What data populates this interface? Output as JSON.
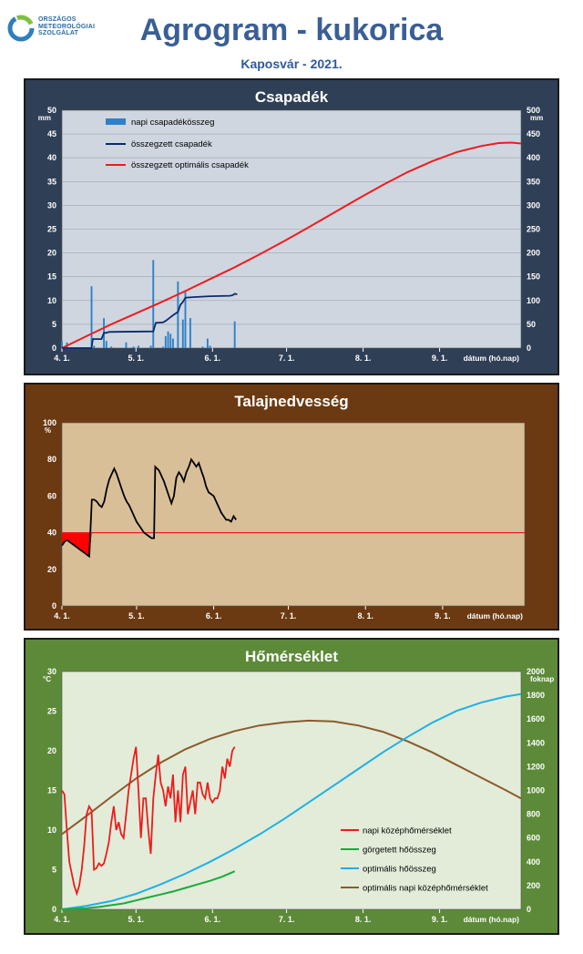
{
  "header": {
    "logo_text": "ORSZÁGOS\nMETEOROLÓGIAI\nSZOLGÁLAT",
    "title": "Agrogram - kukorica",
    "subtitle": "Kaposvár - 2021."
  },
  "colors": {
    "title": "#3a5f95",
    "precip_bg": "#2f3f55",
    "precip_plot": "#cfd6e0",
    "soil_bg": "#6b3a12",
    "soil_plot": "#d9bf98",
    "temp_bg": "#5d8a38",
    "temp_plot": "#e2ecd9"
  },
  "chart_data": [
    {
      "id": "precip",
      "type": "bar+line",
      "title": "Csapadék",
      "x_axis": {
        "label": "dátum (hó.nap)",
        "range_days": [
          0,
          186
        ],
        "ticks": [
          {
            "d": 0,
            "label": "4. 1."
          },
          {
            "d": 30,
            "label": "5. 1."
          },
          {
            "d": 61,
            "label": "6. 1."
          },
          {
            "d": 91,
            "label": "7. 1."
          },
          {
            "d": 122,
            "label": "8. 1."
          },
          {
            "d": 153,
            "label": "9. 1."
          }
        ]
      },
      "y_left": {
        "unit": "mm",
        "range": [
          0,
          50
        ],
        "ticks": [
          0,
          5,
          10,
          15,
          20,
          25,
          30,
          35,
          40,
          45,
          50
        ]
      },
      "y_right": {
        "unit": "mm",
        "range": [
          0,
          500
        ],
        "ticks": [
          0,
          50,
          100,
          150,
          200,
          250,
          300,
          350,
          400,
          450,
          500
        ]
      },
      "grid": true,
      "legend": {
        "position": "top-left",
        "entries": [
          "napi csapadékösszeg",
          "összegzett csapadék",
          "összegzett optimális csapadék"
        ]
      },
      "daily_precip": [
        [
          0,
          1.5
        ],
        [
          2,
          1.2
        ],
        [
          12,
          13
        ],
        [
          13,
          0.5
        ],
        [
          17,
          6.3
        ],
        [
          18,
          1.5
        ],
        [
          20,
          0.3
        ],
        [
          26,
          1.2
        ],
        [
          29,
          0.3
        ],
        [
          31,
          0.5
        ],
        [
          36,
          0.5
        ],
        [
          37,
          18.5
        ],
        [
          41,
          0.3
        ],
        [
          42,
          2.5
        ],
        [
          43,
          3.5
        ],
        [
          44,
          3
        ],
        [
          45,
          2
        ],
        [
          47,
          14
        ],
        [
          49,
          6
        ],
        [
          50,
          11.8
        ],
        [
          52,
          6.3
        ],
        [
          57,
          0.3
        ],
        [
          59,
          2
        ],
        [
          60,
          0.5
        ],
        [
          70,
          5.6
        ]
      ],
      "cumulative": [
        [
          0,
          0
        ],
        [
          12,
          0
        ],
        [
          12.5,
          1.9
        ],
        [
          16,
          1.9
        ],
        [
          17,
          3.2
        ],
        [
          18,
          3.2
        ],
        [
          19,
          3.4
        ],
        [
          37,
          3.5
        ],
        [
          38,
          5.3
        ],
        [
          41,
          5.4
        ],
        [
          42,
          5.7
        ],
        [
          43,
          6.1
        ],
        [
          44,
          6.5
        ],
        [
          45,
          6.9
        ],
        [
          47,
          7.6
        ],
        [
          48,
          9.1
        ],
        [
          49,
          9.7
        ],
        [
          50,
          10.6
        ],
        [
          53,
          10.7
        ],
        [
          60,
          10.9
        ],
        [
          68,
          11
        ],
        [
          69,
          11.1
        ],
        [
          70,
          11.4
        ],
        [
          71,
          11.3
        ]
      ],
      "optimal_cumulative": [
        [
          0,
          0
        ],
        [
          10,
          25
        ],
        [
          20,
          50
        ],
        [
          30,
          73
        ],
        [
          40,
          96
        ],
        [
          50,
          120
        ],
        [
          60,
          145
        ],
        [
          70,
          170
        ],
        [
          80,
          197
        ],
        [
          90,
          225
        ],
        [
          100,
          254
        ],
        [
          110,
          284
        ],
        [
          120,
          314
        ],
        [
          130,
          343
        ],
        [
          140,
          370
        ],
        [
          150,
          393
        ],
        [
          160,
          412
        ],
        [
          170,
          425
        ],
        [
          177,
          431
        ],
        [
          182,
          432
        ],
        [
          186,
          430
        ]
      ]
    },
    {
      "id": "soil",
      "type": "line",
      "title": "Talajnedvesség",
      "x_axis": {
        "label": "dátum (hó.nap)",
        "range_days": [
          0,
          186
        ],
        "ticks": [
          {
            "d": 0,
            "label": "4. 1."
          },
          {
            "d": 30,
            "label": "5. 1."
          },
          {
            "d": 61,
            "label": "6. 1."
          },
          {
            "d": 91,
            "label": "7. 1."
          },
          {
            "d": 122,
            "label": "8. 1."
          },
          {
            "d": 153,
            "label": "9. 1."
          }
        ]
      },
      "y_axis": {
        "unit": "%",
        "range": [
          0,
          100
        ],
        "ticks": [
          0,
          20,
          40,
          60,
          80,
          100
        ]
      },
      "grid": false,
      "threshold": 40,
      "soil_moisture": [
        [
          0,
          33
        ],
        [
          1,
          35
        ],
        [
          2,
          36
        ],
        [
          3,
          35
        ],
        [
          4,
          34
        ],
        [
          5,
          33
        ],
        [
          6,
          32
        ],
        [
          7,
          31
        ],
        [
          8,
          30
        ],
        [
          9,
          29
        ],
        [
          10,
          28
        ],
        [
          11,
          27
        ],
        [
          12,
          58
        ],
        [
          13,
          58
        ],
        [
          14,
          57
        ],
        [
          15,
          55
        ],
        [
          16,
          54
        ],
        [
          17,
          57
        ],
        [
          18,
          64
        ],
        [
          19,
          69
        ],
        [
          20,
          72
        ],
        [
          21,
          75
        ],
        [
          22,
          72
        ],
        [
          23,
          68
        ],
        [
          24,
          64
        ],
        [
          25,
          60
        ],
        [
          26,
          57
        ],
        [
          27,
          55
        ],
        [
          28,
          52
        ],
        [
          29,
          49
        ],
        [
          30,
          46
        ],
        [
          31,
          44
        ],
        [
          32,
          42
        ],
        [
          33,
          40
        ],
        [
          34,
          39
        ],
        [
          35,
          38
        ],
        [
          36,
          37
        ],
        [
          37,
          37
        ],
        [
          37.5,
          76
        ],
        [
          39,
          74
        ],
        [
          41,
          68
        ],
        [
          43,
          60
        ],
        [
          44,
          56
        ],
        [
          45,
          60
        ],
        [
          46,
          70
        ],
        [
          47,
          73
        ],
        [
          48,
          71
        ],
        [
          49,
          68
        ],
        [
          50,
          73
        ],
        [
          51,
          76
        ],
        [
          52,
          80
        ],
        [
          53,
          78
        ],
        [
          54,
          76
        ],
        [
          55,
          78
        ],
        [
          56,
          74
        ],
        [
          57,
          70
        ],
        [
          58,
          65
        ],
        [
          59,
          62
        ],
        [
          60,
          61
        ],
        [
          61,
          60
        ],
        [
          62,
          57
        ],
        [
          63,
          54
        ],
        [
          64,
          51
        ],
        [
          65,
          49
        ],
        [
          66,
          47
        ],
        [
          67,
          47
        ],
        [
          68,
          46
        ],
        [
          69,
          49
        ],
        [
          70,
          47
        ]
      ]
    },
    {
      "id": "temp",
      "type": "line",
      "title": "Hőmérséklet",
      "x_axis": {
        "label": "dátum (hó.nap)",
        "range_days": [
          0,
          186
        ],
        "ticks": [
          {
            "d": 0,
            "label": "4. 1."
          },
          {
            "d": 30,
            "label": "5. 1."
          },
          {
            "d": 61,
            "label": "6. 1."
          },
          {
            "d": 91,
            "label": "7. 1."
          },
          {
            "d": 122,
            "label": "8. 1."
          },
          {
            "d": 153,
            "label": "9. 1."
          }
        ]
      },
      "y_left": {
        "unit": "°C",
        "range": [
          0,
          30
        ],
        "ticks": [
          0,
          5,
          10,
          15,
          20,
          25,
          30
        ]
      },
      "y_right": {
        "unit": "foknap",
        "range": [
          0,
          2000
        ],
        "ticks": [
          0,
          200,
          400,
          600,
          800,
          1000,
          1200,
          1400,
          1600,
          1800,
          2000
        ]
      },
      "grid": false,
      "legend": {
        "position": "bottom-right",
        "entries": [
          "napi középhőmérséklet",
          "görgetett hőösszeg",
          "optimális hőösszeg",
          "optimális napi középhőmérséklet"
        ]
      },
      "daily_mean_temp": [
        [
          0,
          15
        ],
        [
          1,
          14.5
        ],
        [
          2,
          10
        ],
        [
          3,
          6
        ],
        [
          4,
          4.5
        ],
        [
          5,
          3
        ],
        [
          6,
          2
        ],
        [
          7,
          3
        ],
        [
          8,
          5
        ],
        [
          9,
          8
        ],
        [
          10,
          12
        ],
        [
          11,
          13
        ],
        [
          12,
          12.5
        ],
        [
          13,
          5
        ],
        [
          14,
          5.2
        ],
        [
          15,
          5.8
        ],
        [
          16,
          5.5
        ],
        [
          17,
          5.8
        ],
        [
          18,
          7
        ],
        [
          19,
          8.5
        ],
        [
          20,
          11
        ],
        [
          21,
          13
        ],
        [
          22,
          10
        ],
        [
          23,
          11
        ],
        [
          24,
          9.5
        ],
        [
          25,
          9
        ],
        [
          26,
          12
        ],
        [
          27,
          15
        ],
        [
          28,
          17
        ],
        [
          29,
          19
        ],
        [
          30,
          20.5
        ],
        [
          31,
          15
        ],
        [
          32,
          9
        ],
        [
          33,
          14
        ],
        [
          34,
          14
        ],
        [
          35,
          10
        ],
        [
          36,
          7
        ],
        [
          37,
          14
        ],
        [
          38,
          17
        ],
        [
          39,
          19.5
        ],
        [
          40,
          16
        ],
        [
          41,
          15
        ],
        [
          42,
          13
        ],
        [
          43,
          15.5
        ],
        [
          44,
          14
        ],
        [
          45,
          17
        ],
        [
          46,
          11
        ],
        [
          47,
          15
        ],
        [
          48,
          11
        ],
        [
          49,
          17
        ],
        [
          50,
          18
        ],
        [
          51,
          12
        ],
        [
          52,
          13.5
        ],
        [
          53,
          15
        ],
        [
          54,
          12
        ],
        [
          55,
          16
        ],
        [
          56,
          16
        ],
        [
          57,
          14.5
        ],
        [
          58,
          14
        ],
        [
          59,
          16
        ],
        [
          60,
          14
        ],
        [
          61,
          13.5
        ],
        [
          62,
          14
        ],
        [
          63,
          14
        ],
        [
          64,
          15
        ],
        [
          65,
          18
        ],
        [
          66,
          16.5
        ],
        [
          67,
          19
        ],
        [
          68,
          18
        ],
        [
          69,
          20
        ],
        [
          70,
          20.5
        ]
      ],
      "rolling_heat_sum": [
        [
          0,
          0
        ],
        [
          10,
          10
        ],
        [
          15,
          20
        ],
        [
          20,
          35
        ],
        [
          25,
          50
        ],
        [
          30,
          75
        ],
        [
          35,
          100
        ],
        [
          40,
          125
        ],
        [
          45,
          150
        ],
        [
          50,
          180
        ],
        [
          55,
          210
        ],
        [
          60,
          240
        ],
        [
          65,
          275
        ],
        [
          70,
          320
        ]
      ],
      "optimal_heat_sum": [
        [
          0,
          0
        ],
        [
          10,
          30
        ],
        [
          20,
          70
        ],
        [
          30,
          130
        ],
        [
          40,
          210
        ],
        [
          50,
          300
        ],
        [
          60,
          400
        ],
        [
          70,
          510
        ],
        [
          80,
          630
        ],
        [
          90,
          760
        ],
        [
          100,
          900
        ],
        [
          110,
          1040
        ],
        [
          120,
          1180
        ],
        [
          130,
          1320
        ],
        [
          140,
          1450
        ],
        [
          150,
          1570
        ],
        [
          160,
          1670
        ],
        [
          170,
          1740
        ],
        [
          180,
          1790
        ],
        [
          186,
          1810
        ]
      ],
      "optimal_daily_temp": [
        [
          0,
          9.5
        ],
        [
          10,
          11.8
        ],
        [
          20,
          14.2
        ],
        [
          30,
          16.5
        ],
        [
          40,
          18.5
        ],
        [
          50,
          20.2
        ],
        [
          60,
          21.5
        ],
        [
          70,
          22.5
        ],
        [
          80,
          23.2
        ],
        [
          90,
          23.6
        ],
        [
          100,
          23.8
        ],
        [
          110,
          23.7
        ],
        [
          120,
          23.2
        ],
        [
          130,
          22.4
        ],
        [
          140,
          21.2
        ],
        [
          150,
          19.8
        ],
        [
          160,
          18.2
        ],
        [
          170,
          16.6
        ],
        [
          180,
          15
        ],
        [
          186,
          14
        ]
      ]
    }
  ]
}
